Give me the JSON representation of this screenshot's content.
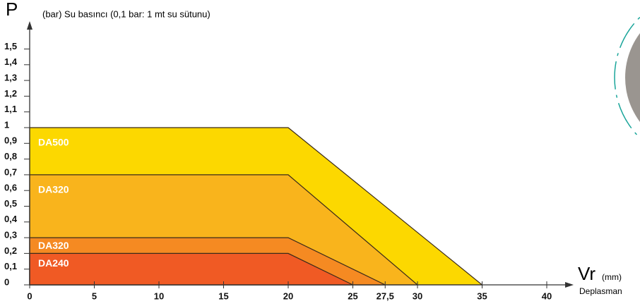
{
  "chart_data": {
    "type": "area",
    "y_label": "P",
    "y_subtitle": "(bar) Su basıncı (0,1 bar: 1 mt su sütunu)",
    "x_label": "Vr",
    "x_unit": "(mm)",
    "x_subtitle": "Deplasman",
    "series": [
      {
        "name": "DA500",
        "color": "#fcd800",
        "x": [
          0,
          20,
          35
        ],
        "values": [
          1,
          1,
          0
        ]
      },
      {
        "name": "DA320",
        "color": "#f9b41c",
        "x": [
          0,
          20,
          30
        ],
        "values": [
          0.7,
          0.7,
          0
        ]
      },
      {
        "name": "DA320",
        "color": "#f58a22",
        "x": [
          0,
          20,
          27.5
        ],
        "values": [
          0.3,
          0.3,
          0
        ]
      },
      {
        "name": "DA240",
        "color": "#f05a24",
        "x": [
          0,
          20,
          25
        ],
        "values": [
          0.2,
          0.2,
          0
        ]
      }
    ],
    "xlim": [
      0,
      43
    ],
    "ylim": [
      0,
      1.6
    ],
    "xticks": [
      0,
      5,
      10,
      15,
      20,
      25,
      {
        "value": 27.5,
        "label": "27,5"
      },
      30,
      35,
      40
    ],
    "yticks": [
      0,
      {
        "value": 0.1,
        "label": "0,1"
      },
      {
        "value": 0.2,
        "label": "0,2"
      },
      {
        "value": 0.3,
        "label": "0,3"
      },
      {
        "value": 0.4,
        "label": "0,4"
      },
      {
        "value": 0.5,
        "label": "0,5"
      },
      {
        "value": 0.6,
        "label": "0,6"
      },
      {
        "value": 0.7,
        "label": "0,7"
      },
      {
        "value": 0.8,
        "label": "0,8"
      },
      {
        "value": 0.9,
        "label": "0,9"
      },
      1,
      {
        "value": 1.1,
        "label": "1,1"
      },
      {
        "value": 1.2,
        "label": "1,2"
      },
      {
        "value": 1.3,
        "label": "1,3"
      },
      {
        "value": 1.4,
        "label": "1,4"
      },
      {
        "value": 1.5,
        "label": "1,5"
      }
    ]
  }
}
